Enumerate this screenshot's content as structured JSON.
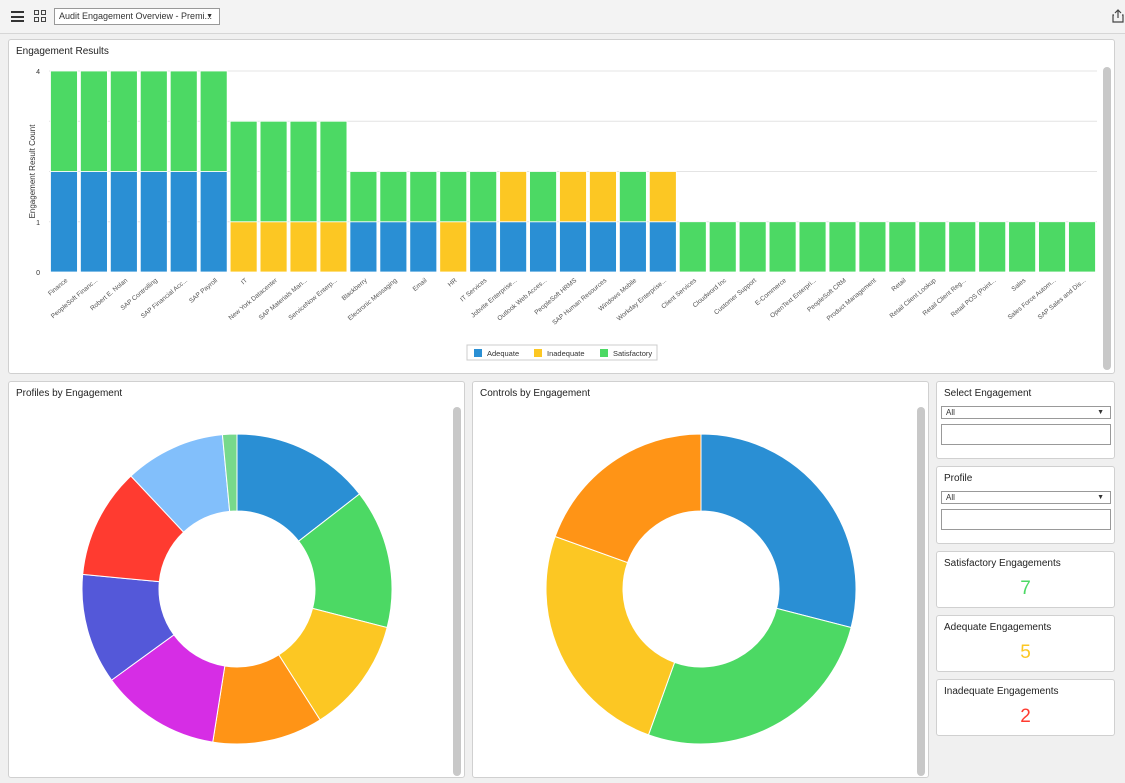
{
  "toolbar": {
    "dashboard_select": "Audit Engagement Overview - Premi...",
    "menu_icon": "hamburger-menu-icon",
    "grid_icon": "dashboard-grid-icon",
    "share_icon": "share-icon"
  },
  "engagement_results": {
    "title": "Engagement Results"
  },
  "chart_data": [
    {
      "type": "bar",
      "stacked": true,
      "title": "Engagement Results",
      "xlabel": "",
      "ylabel": "Engagement Result Count",
      "ylim": [
        0,
        4
      ],
      "yticks": [
        0,
        1,
        4
      ],
      "grid": true,
      "legend_position": "bottom",
      "categories": [
        "Finance",
        "PeopleSoft Financ...",
        "Robert E. Nolan",
        "SAP Controlling",
        "SAP Financial Acc...",
        "SAP Payroll",
        "IT",
        "New York Datacenter",
        "SAP Materials Man...",
        "ServiceNow Enterp...",
        "Blackberry",
        "Electronic Messaging",
        "Email",
        "HR",
        "IT Services",
        "Jobvite Enterprise...",
        "Outlook Web Acces...",
        "PeopleSoft HRMS",
        "SAP Human Resources",
        "Windows Mobile",
        "Workday Enterprise...",
        "Client Services",
        "Cloudword Inc",
        "Customer Support",
        "E-Commerce",
        "OpenText Enterpri...",
        "PeopleSoft CRM",
        "Product Management",
        "Retail",
        "Retail Client Lookup",
        "Retail Client Reg...",
        "Retail POS (Point...",
        "Sales",
        "Sales Force Autom...",
        "SAP Sales and Dis..."
      ],
      "series": [
        {
          "name": "Adequate",
          "color": "#2a8fd4",
          "values": [
            2,
            2,
            2,
            2,
            2,
            2,
            0,
            0,
            0,
            0,
            1,
            1,
            1,
            0,
            1,
            1,
            1,
            1,
            1,
            1,
            1,
            0,
            0,
            0,
            0,
            0,
            0,
            0,
            0,
            0,
            0,
            0,
            0,
            0,
            0
          ]
        },
        {
          "name": "Inadequate",
          "color": "#fcc723",
          "values": [
            0,
            0,
            0,
            0,
            0,
            0,
            1,
            1,
            1,
            1,
            0,
            0,
            0,
            1,
            0,
            1,
            0,
            1,
            1,
            0,
            1,
            0,
            0,
            0,
            0,
            0,
            0,
            0,
            0,
            0,
            0,
            0,
            0,
            0,
            0
          ]
        },
        {
          "name": "Satisfactory",
          "color": "#4cd964",
          "values": [
            2,
            2,
            2,
            2,
            2,
            2,
            2,
            2,
            2,
            2,
            1,
            1,
            1,
            1,
            1,
            0,
            1,
            0,
            0,
            1,
            0,
            1,
            1,
            1,
            1,
            1,
            1,
            1,
            1,
            1,
            1,
            1,
            1,
            1,
            1
          ]
        }
      ]
    },
    {
      "type": "pie",
      "donut": true,
      "title": "Profiles by Engagement",
      "slices": [
        {
          "value": 14.5,
          "color": "#2a8fd4"
        },
        {
          "value": 14.5,
          "color": "#4cd964"
        },
        {
          "value": 12,
          "color": "#fcc723"
        },
        {
          "value": 11.5,
          "color": "#ff9416"
        },
        {
          "value": 12.5,
          "color": "#d62de5"
        },
        {
          "value": 11.5,
          "color": "#5458d9"
        },
        {
          "value": 11.5,
          "color": "#ff3b30"
        },
        {
          "value": 10.5,
          "color": "#82bffb"
        },
        {
          "value": 1.5,
          "color": "#77d98c"
        }
      ]
    },
    {
      "type": "pie",
      "donut": true,
      "title": "Controls by Engagement",
      "slices": [
        {
          "value": 29,
          "color": "#2a8fd4"
        },
        {
          "value": 26.5,
          "color": "#4cd964"
        },
        {
          "value": 25,
          "color": "#fcc723"
        },
        {
          "value": 19.5,
          "color": "#ff9416"
        }
      ]
    }
  ],
  "profiles": {
    "title": "Profiles by Engagement"
  },
  "controls": {
    "title": "Controls by Engagement"
  },
  "select_engagement": {
    "title": "Select Engagement",
    "value": "All"
  },
  "profile": {
    "title": "Profile",
    "value": "All"
  },
  "kpis": {
    "satisfactory": {
      "label": "Satisfactory Engagements",
      "value": "7",
      "color": "#4cd964"
    },
    "adequate": {
      "label": "Adequate Engagements",
      "value": "5",
      "color": "#fcc723"
    },
    "inadequate": {
      "label": "Inadequate Engagements",
      "value": "2",
      "color": "#ff3b30"
    }
  }
}
